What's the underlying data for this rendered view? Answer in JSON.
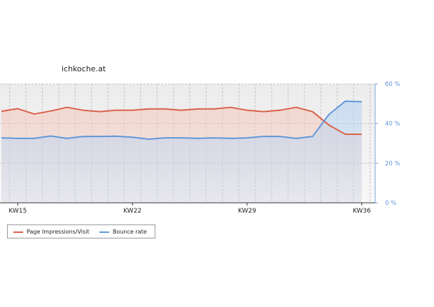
{
  "chart_data": {
    "type": "line",
    "title": "ichkoche.at",
    "x_tick_labels": [
      "KW15",
      "KW22",
      "KW29",
      "KW36"
    ],
    "y_right_tick_labels": [
      "0 %",
      "20 %",
      "40 %",
      "60 %"
    ],
    "y_right_range": [
      0,
      60
    ],
    "grid": true,
    "legend_position": "bottom-left",
    "colors": {
      "page_impressions": "#d9614a",
      "bounce_rate": "#5f96d8"
    },
    "series": [
      {
        "name": "Page Impressions/Visit",
        "axis": "left-hidden",
        "values": [
          46.2,
          47.5,
          44.8,
          46.3,
          48.2,
          46.7,
          46.0,
          46.7,
          46.7,
          47.4,
          47.4,
          46.7,
          47.4,
          47.4,
          48.2,
          46.7,
          46.0,
          46.7,
          48.2,
          46.0,
          39.2,
          34.6,
          34.6
        ]
      },
      {
        "name": "Bounce rate",
        "axis": "right",
        "values": [
          32.8,
          32.5,
          32.5,
          33.7,
          32.5,
          33.5,
          33.5,
          33.6,
          33.1,
          32.1,
          32.8,
          32.8,
          32.5,
          32.8,
          32.5,
          32.8,
          33.5,
          33.5,
          32.5,
          33.5,
          44.6,
          51.3,
          51.0
        ]
      }
    ]
  }
}
